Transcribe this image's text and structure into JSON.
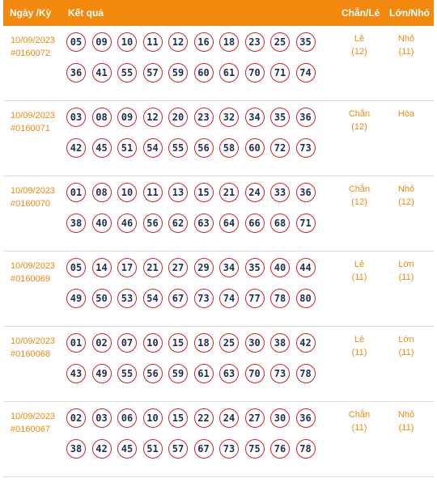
{
  "header": {
    "date_label": "Ngày /Kỳ",
    "result_label": "Kết quả",
    "even_odd_label": "Chẵn/Lẻ",
    "big_small_label": "Lớn/Nhỏ"
  },
  "colors": {
    "accent": "#f2880e",
    "ball_border": "#d0202a",
    "ball_text": "#1f2d4d"
  },
  "draws": [
    {
      "date": "10/09/2023",
      "period": "#0160072",
      "numbers": [
        "05",
        "09",
        "10",
        "11",
        "12",
        "16",
        "18",
        "23",
        "25",
        "35",
        "36",
        "41",
        "55",
        "57",
        "59",
        "60",
        "61",
        "70",
        "71",
        "74"
      ],
      "even_odd": "Lẻ",
      "even_odd_count": "(12)",
      "big_small": "Nhỏ",
      "big_small_count": "(11)"
    },
    {
      "date": "10/09/2023",
      "period": "#0160071",
      "numbers": [
        "03",
        "08",
        "09",
        "12",
        "20",
        "23",
        "32",
        "34",
        "35",
        "36",
        "42",
        "45",
        "51",
        "54",
        "55",
        "56",
        "58",
        "60",
        "72",
        "73"
      ],
      "even_odd": "Chẵn",
      "even_odd_count": "(12)",
      "big_small": "Hòa",
      "big_small_count": ""
    },
    {
      "date": "10/09/2023",
      "period": "#0160070",
      "numbers": [
        "01",
        "08",
        "10",
        "11",
        "13",
        "15",
        "21",
        "24",
        "33",
        "36",
        "38",
        "40",
        "46",
        "56",
        "62",
        "63",
        "64",
        "66",
        "68",
        "71"
      ],
      "even_odd": "Chẵn",
      "even_odd_count": "(12)",
      "big_small": "Nhỏ",
      "big_small_count": "(12)"
    },
    {
      "date": "10/09/2023",
      "period": "#0160069",
      "numbers": [
        "05",
        "14",
        "17",
        "21",
        "27",
        "29",
        "34",
        "35",
        "40",
        "44",
        "49",
        "50",
        "53",
        "54",
        "67",
        "73",
        "74",
        "77",
        "78",
        "80"
      ],
      "even_odd": "Lẻ",
      "even_odd_count": "(11)",
      "big_small": "Lớn",
      "big_small_count": "(11)"
    },
    {
      "date": "10/09/2023",
      "period": "#0160068",
      "numbers": [
        "01",
        "02",
        "07",
        "10",
        "15",
        "18",
        "25",
        "30",
        "38",
        "42",
        "43",
        "49",
        "55",
        "56",
        "59",
        "61",
        "63",
        "70",
        "73",
        "78"
      ],
      "even_odd": "Lẻ",
      "even_odd_count": "(11)",
      "big_small": "Lớn",
      "big_small_count": "(11)"
    },
    {
      "date": "10/09/2023",
      "period": "#0160067",
      "numbers": [
        "02",
        "03",
        "06",
        "10",
        "15",
        "22",
        "24",
        "27",
        "30",
        "36",
        "38",
        "42",
        "45",
        "51",
        "57",
        "67",
        "73",
        "75",
        "76",
        "78"
      ],
      "even_odd": "Chẵn",
      "even_odd_count": "(11)",
      "big_small": "Nhỏ",
      "big_small_count": "(11)"
    }
  ]
}
